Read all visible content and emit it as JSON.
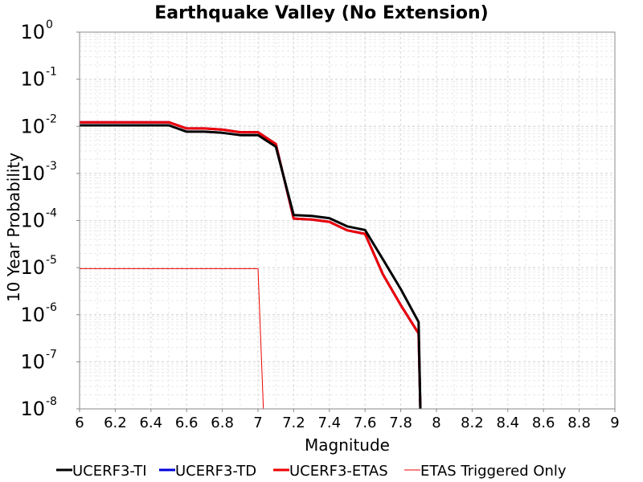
{
  "chart_data": {
    "type": "line",
    "title": "Earthquake Valley (No  Extension)",
    "xlabel": "Magnitude",
    "ylabel": "10 Year Probability",
    "xlim": [
      6,
      9
    ],
    "ylim": [
      1e-08,
      1
    ],
    "y_scale": "log",
    "grid": true,
    "legend_position": "bottom",
    "x_ticks": [
      "6",
      "6.2",
      "6.4",
      "6.6",
      "6.8",
      "7",
      "7.2",
      "7.4",
      "7.6",
      "7.8",
      "8",
      "8.2",
      "8.4",
      "8.6",
      "8.8",
      "9"
    ],
    "y_tick_base": "10",
    "y_tick_exponents": [
      "-8",
      "-7",
      "-6",
      "-5",
      "-4",
      "-3",
      "-2",
      "-1",
      "0"
    ],
    "series": [
      {
        "name": "UCERF3-TI",
        "color": "#000000",
        "line_width": 3,
        "x": [
          6.0,
          6.1,
          6.2,
          6.3,
          6.4,
          6.5,
          6.6,
          6.7,
          6.8,
          6.9,
          7.0,
          7.1,
          7.2,
          7.3,
          7.4,
          7.5,
          7.6,
          7.7,
          7.8,
          7.9,
          7.91
        ],
        "y": [
          0.0105,
          0.0105,
          0.0105,
          0.0105,
          0.0105,
          0.0105,
          0.0077,
          0.0077,
          0.0073,
          0.0065,
          0.0065,
          0.0037,
          0.00013,
          0.000125,
          0.000112,
          7.5e-05,
          6.3e-05,
          1.5e-05,
          3.5e-06,
          7e-07,
          1e-08
        ]
      },
      {
        "name": "UCERF3-TD",
        "color": "#0000dd",
        "line_width": 3,
        "x": [
          6.0,
          6.1,
          6.2,
          6.3,
          6.4,
          6.5,
          6.6,
          6.7,
          6.8,
          6.9,
          7.0,
          7.1,
          7.2,
          7.3,
          7.4,
          7.5,
          7.6,
          7.7,
          7.8,
          7.9,
          7.91
        ],
        "y": [
          0.0122,
          0.0122,
          0.0122,
          0.0122,
          0.0122,
          0.0122,
          0.009,
          0.009,
          0.0085,
          0.0075,
          0.0075,
          0.0042,
          0.00011,
          0.000105,
          9.4e-05,
          6.2e-05,
          5.2e-05,
          7.2e-06,
          1.6e-06,
          4e-07,
          1e-08
        ]
      },
      {
        "name": "UCERF3-ETAS",
        "color": "#ee0000",
        "line_width": 3,
        "x": [
          6.0,
          6.1,
          6.2,
          6.3,
          6.4,
          6.5,
          6.6,
          6.7,
          6.8,
          6.9,
          7.0,
          7.1,
          7.2,
          7.3,
          7.4,
          7.5,
          7.6,
          7.7,
          7.8,
          7.9,
          7.91
        ],
        "y": [
          0.0122,
          0.0122,
          0.0122,
          0.0122,
          0.0122,
          0.0122,
          0.009,
          0.009,
          0.0085,
          0.0075,
          0.0075,
          0.0042,
          0.00011,
          0.000105,
          9.4e-05,
          6.2e-05,
          5.2e-05,
          7.2e-06,
          1.6e-06,
          4e-07,
          1e-08
        ]
      },
      {
        "name": "ETAS Triggered Only",
        "color": "#ee0000",
        "line_width": 1,
        "x": [
          6.0,
          7.0,
          7.03
        ],
        "y": [
          9.5e-06,
          9.5e-06,
          1e-08
        ]
      }
    ]
  }
}
